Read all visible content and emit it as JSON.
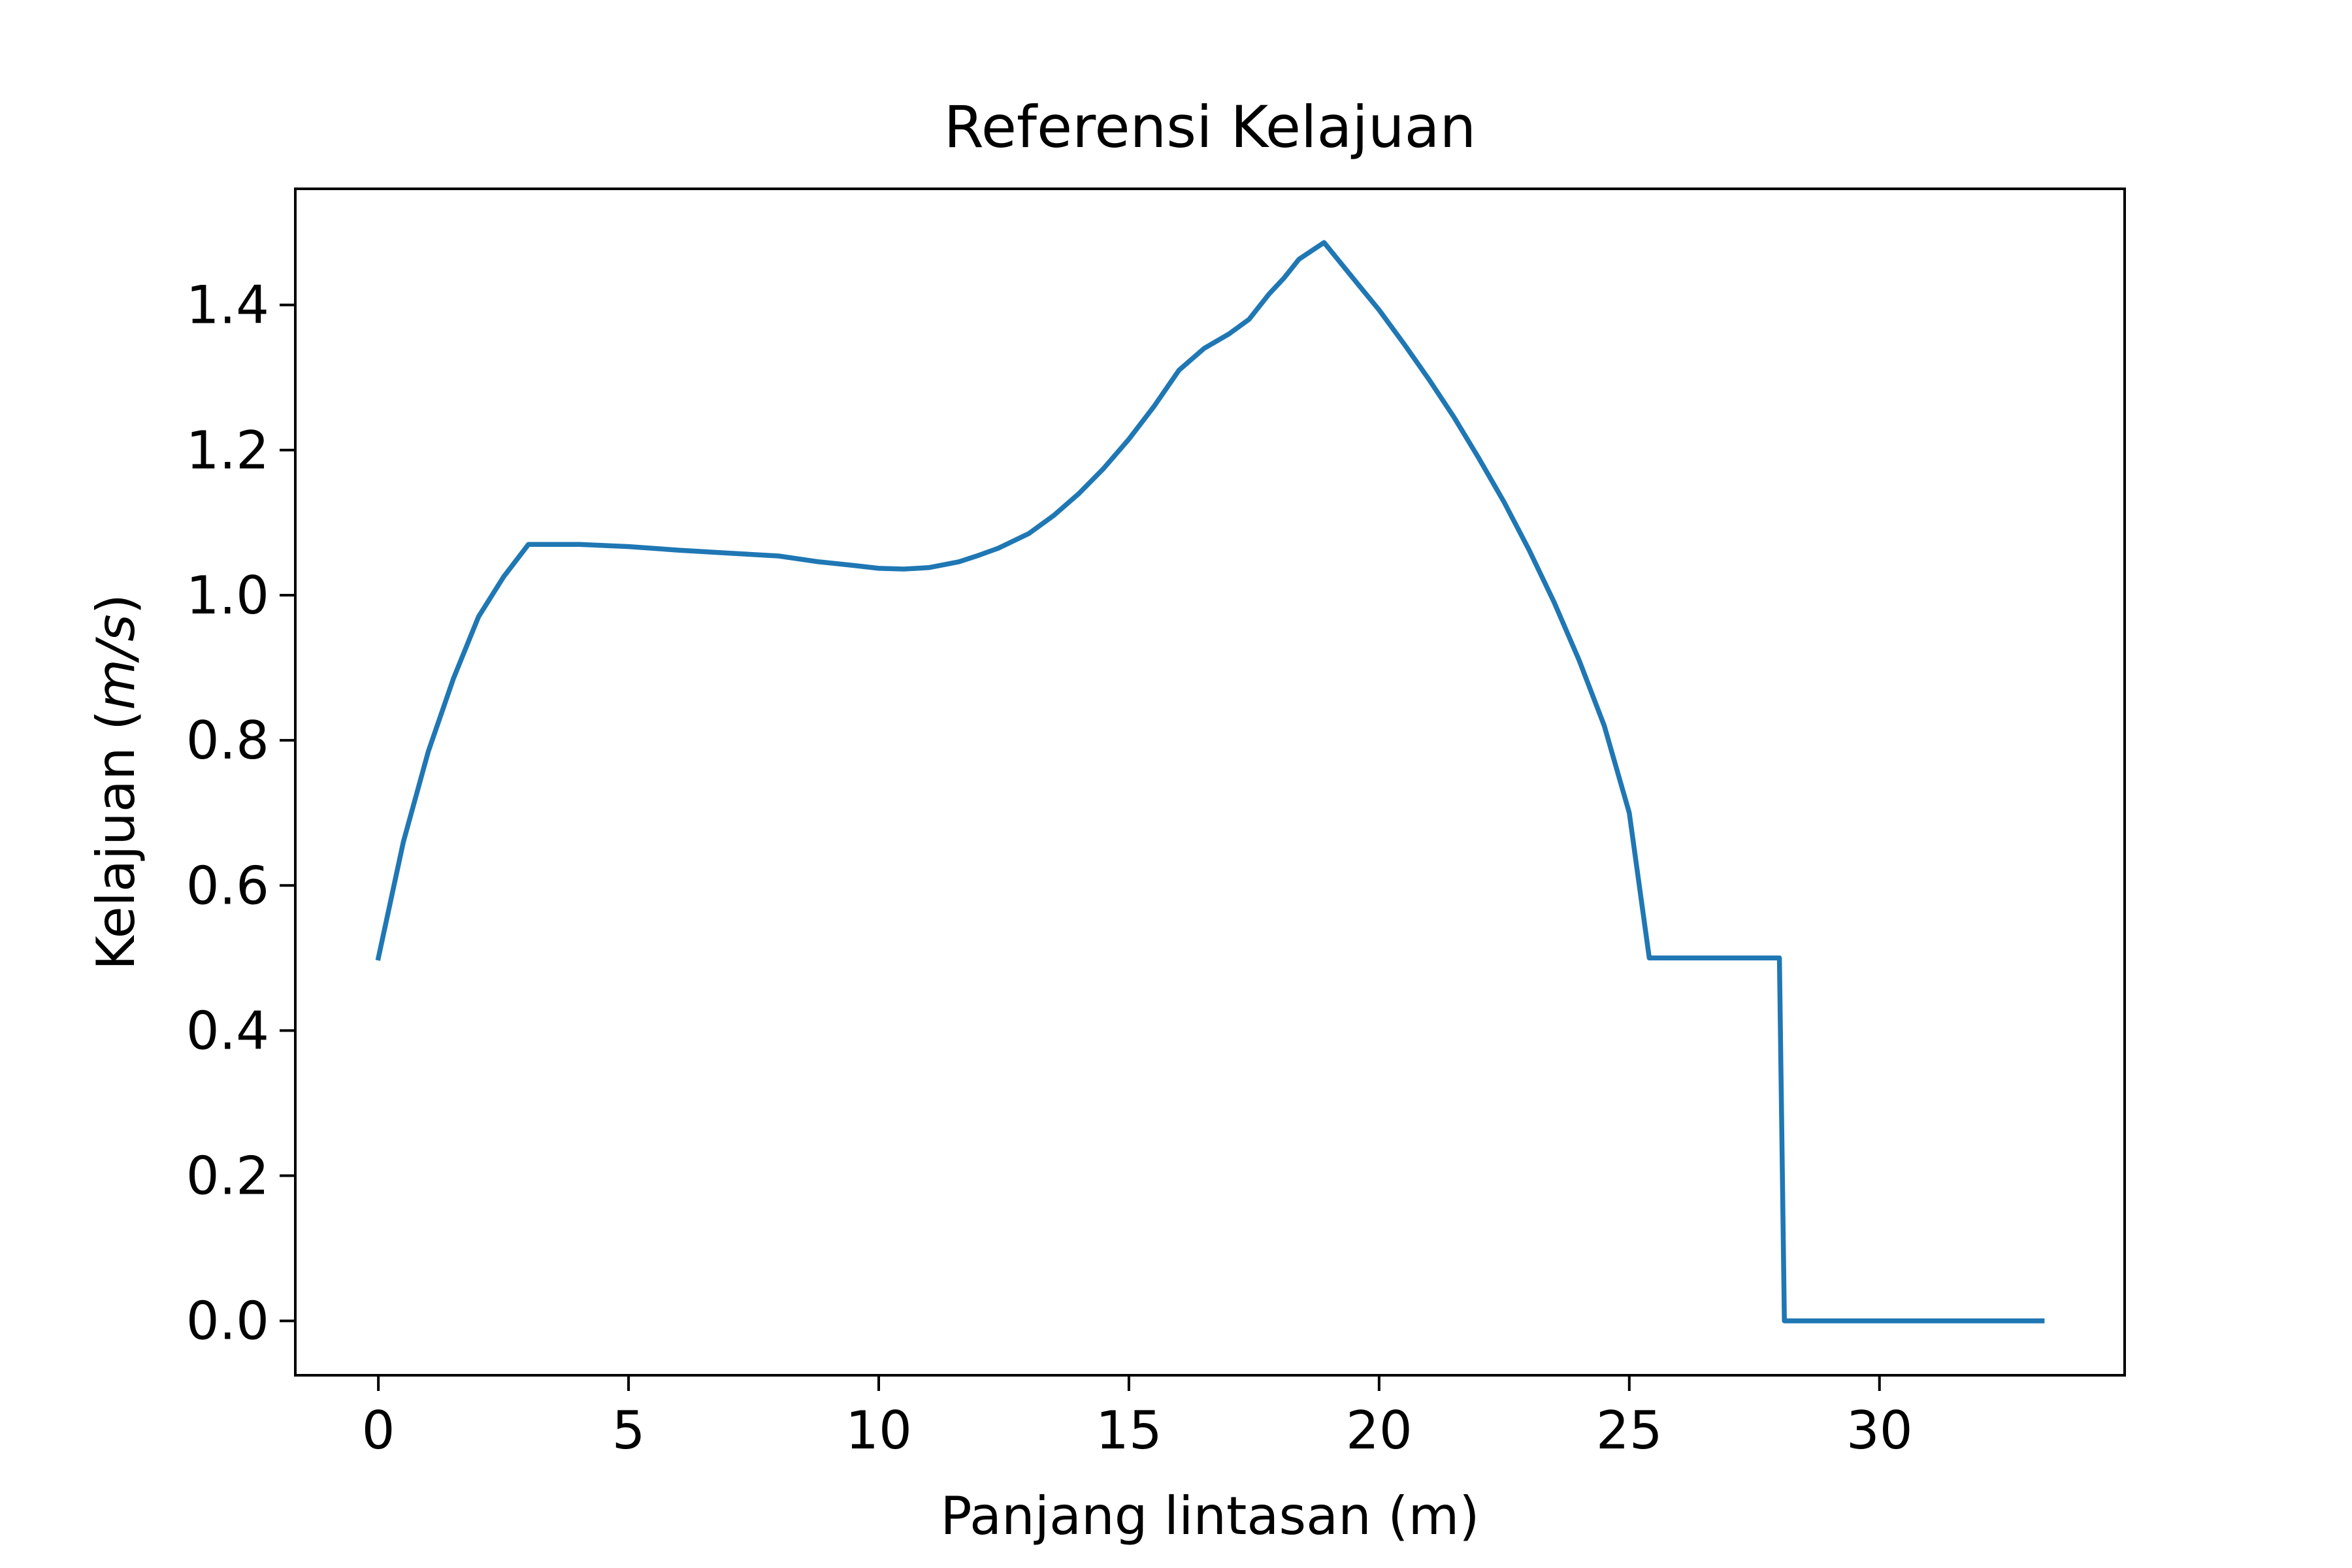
{
  "chart_data": {
    "type": "line",
    "title": "Referensi Kelajuan",
    "xlabel": "Panjang lintasan (m)",
    "ylabel_prefix": "Kelajuan (",
    "ylabel_unit": "m/s",
    "ylabel_suffix": ")",
    "xlim": [
      -1.66,
      34.9
    ],
    "ylim": [
      -0.075,
      1.56
    ],
    "xticks": [
      0,
      5,
      10,
      15,
      20,
      25,
      30
    ],
    "xtick_labels": [
      "0",
      "5",
      "10",
      "15",
      "20",
      "25",
      "30"
    ],
    "yticks": [
      0.0,
      0.2,
      0.4,
      0.6,
      0.8,
      1.0,
      1.2,
      1.4
    ],
    "ytick_labels": [
      "0.0",
      "0.2",
      "0.4",
      "0.6",
      "0.8",
      "1.0",
      "1.2",
      "1.4"
    ],
    "grid": false,
    "legend": "none",
    "series": [
      {
        "color": "#1f77b4",
        "x": [
          0,
          0.5,
          1.0,
          1.5,
          2.0,
          2.5,
          3.0,
          4.0,
          5.0,
          6.0,
          7.0,
          8.0,
          8.8,
          9.5,
          10.0,
          10.5,
          11.0,
          11.6,
          12.0,
          12.4,
          13.0,
          13.5,
          14.0,
          14.5,
          15.0,
          15.5,
          16.0,
          16.5,
          17.0,
          17.4,
          17.8,
          18.1,
          18.4,
          18.9,
          19.5,
          20.0,
          20.5,
          21.0,
          21.5,
          22.0,
          22.5,
          23.0,
          23.5,
          24.0,
          24.5,
          25.0,
          25.4,
          26.0,
          26.8,
          28.0,
          28.1,
          29.0,
          30.0,
          31.0,
          32.0,
          33.25
        ],
        "y": [
          0.5,
          0.66,
          0.785,
          0.885,
          0.97,
          1.025,
          1.07,
          1.07,
          1.067,
          1.062,
          1.058,
          1.054,
          1.046,
          1.041,
          1.037,
          1.036,
          1.038,
          1.046,
          1.055,
          1.065,
          1.085,
          1.11,
          1.14,
          1.175,
          1.215,
          1.26,
          1.31,
          1.34,
          1.36,
          1.38,
          1.415,
          1.437,
          1.463,
          1.486,
          1.435,
          1.393,
          1.346,
          1.297,
          1.245,
          1.188,
          1.128,
          1.062,
          0.99,
          0.91,
          0.82,
          0.7,
          0.5,
          0.5,
          0.5,
          0.5,
          0.0,
          0.0,
          0.0,
          0.0,
          0.0,
          0.0
        ]
      }
    ]
  }
}
